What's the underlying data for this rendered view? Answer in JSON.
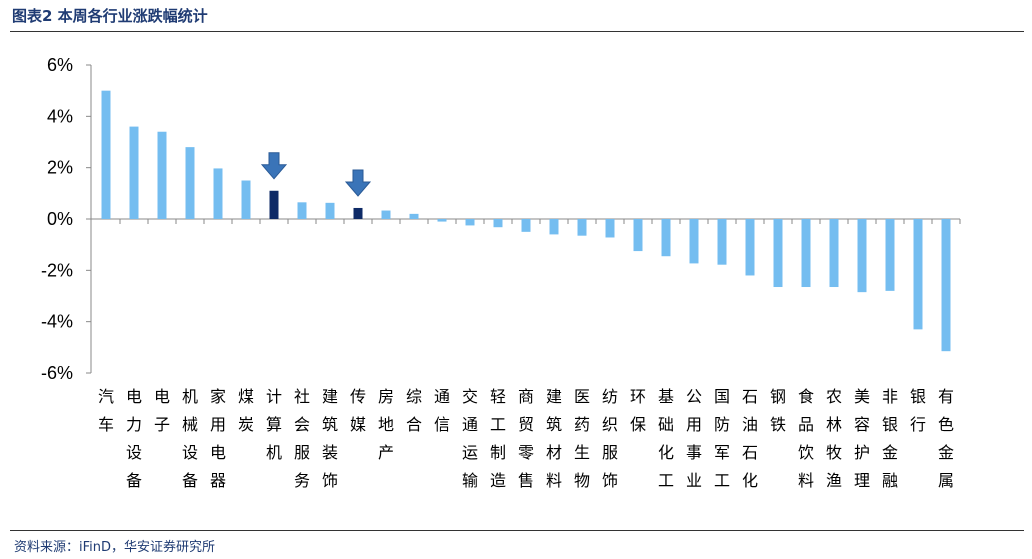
{
  "header": {
    "title": "图表2 本周各行业涨跌幅统计"
  },
  "footer": {
    "source": "资料来源：iFinD，华安证券研究所"
  },
  "colors": {
    "bar": "#74BDF0",
    "highlight_bar": "#0E2A66",
    "arrow": "#3A74B8",
    "title": "#1F3B73"
  },
  "chart_data": {
    "type": "bar",
    "categories": [
      "汽车",
      "电力设备",
      "电子",
      "机械设备",
      "家用电器",
      "煤炭",
      "计算机",
      "社会服务",
      "建筑装饰",
      "传媒",
      "房地产",
      "综合",
      "通信",
      "交通运输",
      "轻工制造",
      "商贸零售",
      "建筑材料",
      "医药生物",
      "纺织服饰",
      "环保",
      "基础化工",
      "公用事业",
      "国防军工",
      "石油石化",
      "钢铁",
      "食品饮料",
      "农林牧渔",
      "美容护理",
      "非银金融",
      "银行",
      "有色金属"
    ],
    "values": [
      5.0,
      3.6,
      3.4,
      2.8,
      1.97,
      1.5,
      1.1,
      0.65,
      0.63,
      0.43,
      0.33,
      0.2,
      -0.1,
      -0.25,
      -0.32,
      -0.5,
      -0.6,
      -0.65,
      -0.72,
      -1.25,
      -1.45,
      -1.73,
      -1.78,
      -2.2,
      -2.65,
      -2.65,
      -2.65,
      -2.85,
      -2.8,
      -4.3,
      -5.15
    ],
    "highlighted": [
      "计算机",
      "传媒"
    ],
    "y_tick_labels": [
      "6%",
      "4%",
      "2%",
      "0%",
      "-2%",
      "-4%",
      "-6%"
    ],
    "ylim": [
      -6,
      6
    ],
    "y_step": 2,
    "title": "",
    "xlabel": "",
    "ylabel": "",
    "grid": false,
    "legend": "none"
  }
}
